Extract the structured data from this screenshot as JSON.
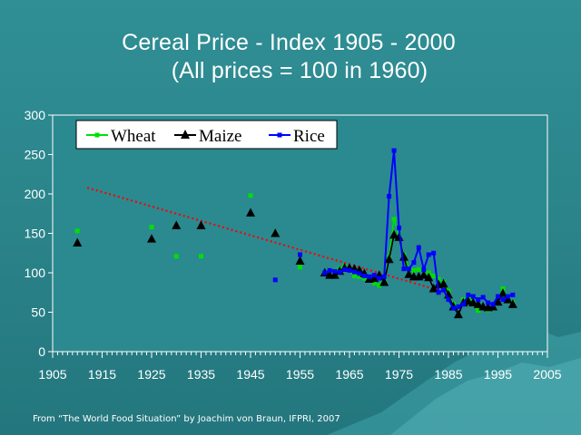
{
  "slide": {
    "title_line1": "Cereal Price - Index 1905 - 2000",
    "title_line2": "(All prices  = 100 in 1960)",
    "source": "From “The World Food Situation” by Joachim von Braun, IFPRI, 2007"
  },
  "colors": {
    "wheat": "#00e000",
    "maize": "#000000",
    "rice": "#0000ff",
    "trend": "#ff0000",
    "plot_bg": "#2a8a90"
  },
  "chart_data": {
    "type": "line",
    "title": "Cereal Price - Index 1905 - 2000",
    "subtitle": "(All prices  = 100 in 1960)",
    "xlim": [
      1905,
      2005
    ],
    "ylim": [
      0,
      300
    ],
    "x_ticks": [
      1905,
      1915,
      1925,
      1935,
      1945,
      1955,
      1965,
      1975,
      1985,
      1995,
      2005
    ],
    "y_ticks": [
      0,
      50,
      100,
      150,
      200,
      250,
      300
    ],
    "legend": {
      "placement": "top-left",
      "entries": [
        "Wheat",
        "Maize",
        "Rice"
      ]
    },
    "grid": false,
    "series": [
      {
        "name": "Wheat",
        "marker": "square",
        "early_points": [
          [
            1910,
            153
          ],
          [
            1925,
            158
          ],
          [
            1930,
            121
          ],
          [
            1935,
            121
          ],
          [
            1945,
            198
          ],
          [
            1950,
            150
          ],
          [
            1955,
            107
          ]
        ],
        "points": [
          [
            1960,
            100
          ],
          [
            1961,
            103
          ],
          [
            1962,
            103
          ],
          [
            1963,
            105
          ],
          [
            1964,
            108
          ],
          [
            1965,
            103
          ],
          [
            1966,
            96
          ],
          [
            1967,
            95
          ],
          [
            1968,
            93
          ],
          [
            1969,
            91
          ],
          [
            1970,
            87
          ],
          [
            1971,
            84
          ],
          [
            1972,
            92
          ],
          [
            1973,
            120
          ],
          [
            1974,
            168
          ],
          [
            1975,
            148
          ],
          [
            1976,
            123
          ],
          [
            1977,
            105
          ],
          [
            1978,
            103
          ],
          [
            1979,
            104
          ],
          [
            1980,
            104
          ],
          [
            1981,
            100
          ],
          [
            1982,
            96
          ],
          [
            1983,
            92
          ],
          [
            1984,
            88
          ],
          [
            1985,
            77
          ],
          [
            1986,
            60
          ],
          [
            1987,
            57
          ],
          [
            1988,
            66
          ],
          [
            1989,
            72
          ],
          [
            1990,
            60
          ],
          [
            1991,
            52
          ],
          [
            1992,
            56
          ],
          [
            1993,
            53
          ],
          [
            1994,
            55
          ],
          [
            1995,
            65
          ],
          [
            1996,
            80
          ],
          [
            1997,
            68
          ],
          [
            1998,
            62
          ]
        ]
      },
      {
        "name": "Maize",
        "marker": "triangle",
        "early_points": [
          [
            1910,
            138
          ],
          [
            1925,
            143
          ],
          [
            1930,
            160
          ],
          [
            1935,
            160
          ],
          [
            1945,
            176
          ],
          [
            1950,
            150
          ],
          [
            1955,
            115
          ]
        ],
        "points": [
          [
            1960,
            100
          ],
          [
            1961,
            97
          ],
          [
            1962,
            97
          ],
          [
            1963,
            102
          ],
          [
            1964,
            106
          ],
          [
            1965,
            106
          ],
          [
            1966,
            105
          ],
          [
            1967,
            103
          ],
          [
            1968,
            99
          ],
          [
            1969,
            92
          ],
          [
            1970,
            93
          ],
          [
            1971,
            97
          ],
          [
            1972,
            88
          ],
          [
            1973,
            117
          ],
          [
            1974,
            148
          ],
          [
            1975,
            145
          ],
          [
            1976,
            120
          ],
          [
            1977,
            98
          ],
          [
            1978,
            95
          ],
          [
            1979,
            95
          ],
          [
            1980,
            97
          ],
          [
            1981,
            94
          ],
          [
            1982,
            80
          ],
          [
            1983,
            85
          ],
          [
            1984,
            86
          ],
          [
            1985,
            72
          ],
          [
            1986,
            57
          ],
          [
            1987,
            47
          ],
          [
            1988,
            62
          ],
          [
            1989,
            64
          ],
          [
            1990,
            62
          ],
          [
            1991,
            60
          ],
          [
            1992,
            57
          ],
          [
            1993,
            56
          ],
          [
            1994,
            57
          ],
          [
            1995,
            63
          ],
          [
            1996,
            74
          ],
          [
            1997,
            66
          ],
          [
            1998,
            60
          ]
        ]
      },
      {
        "name": "Rice",
        "marker": "square",
        "early_points": [
          [
            1950,
            91
          ],
          [
            1955,
            123
          ]
        ],
        "points": [
          [
            1960,
            100
          ],
          [
            1961,
            103
          ],
          [
            1962,
            102
          ],
          [
            1963,
            101
          ],
          [
            1964,
            104
          ],
          [
            1965,
            103
          ],
          [
            1966,
            101
          ],
          [
            1967,
            99
          ],
          [
            1968,
            96
          ],
          [
            1969,
            95
          ],
          [
            1970,
            97
          ],
          [
            1971,
            93
          ],
          [
            1972,
            95
          ],
          [
            1973,
            197
          ],
          [
            1974,
            255
          ],
          [
            1975,
            157
          ],
          [
            1976,
            105
          ],
          [
            1977,
            105
          ],
          [
            1978,
            113
          ],
          [
            1979,
            132
          ],
          [
            1980,
            104
          ],
          [
            1981,
            123
          ],
          [
            1982,
            125
          ],
          [
            1983,
            75
          ],
          [
            1984,
            78
          ],
          [
            1985,
            66
          ],
          [
            1986,
            55
          ],
          [
            1987,
            57
          ],
          [
            1988,
            60
          ],
          [
            1989,
            72
          ],
          [
            1990,
            70
          ],
          [
            1991,
            66
          ],
          [
            1992,
            69
          ],
          [
            1993,
            62
          ],
          [
            1994,
            60
          ],
          [
            1995,
            70
          ],
          [
            1996,
            66
          ],
          [
            1997,
            70
          ],
          [
            1998,
            72
          ]
        ]
      }
    ],
    "trend_line": {
      "style": "dotted",
      "from": [
        1912,
        208
      ],
      "to": [
        1984,
        76
      ]
    }
  }
}
